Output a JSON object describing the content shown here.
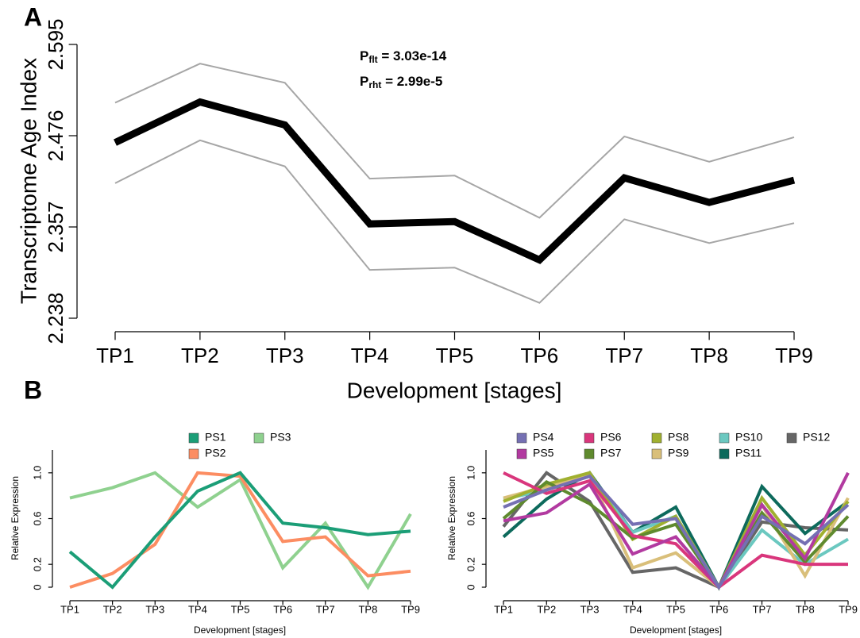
{
  "chart_data": [
    {
      "type": "line",
      "label": "A",
      "ylabel": "Transcriptome Age Index",
      "xlabel": "Development [stages]",
      "categories": [
        "TP1",
        "TP2",
        "TP3",
        "TP4",
        "TP5",
        "TP6",
        "TP7",
        "TP8",
        "TP9"
      ],
      "ylim": [
        2.238,
        2.595
      ],
      "yticks": [
        2.238,
        2.357,
        2.476,
        2.595
      ],
      "annotations": [
        {
          "text": "P",
          "sub": "flt",
          "rest": " = 3.03e-14"
        },
        {
          "text": "P",
          "sub": "rht",
          "rest": " = 2.99e-5"
        }
      ],
      "series": [
        {
          "color": "#000000",
          "values": [
            2.467,
            2.52,
            2.49,
            2.361,
            2.364,
            2.314,
            2.421,
            2.389,
            2.418
          ]
        },
        {
          "color": "#a6a6a6",
          "values": [
            2.519,
            2.57,
            2.545,
            2.42,
            2.424,
            2.369,
            2.475,
            2.442,
            2.474
          ]
        },
        {
          "color": "#a6a6a6",
          "values": [
            2.414,
            2.47,
            2.436,
            2.301,
            2.304,
            2.258,
            2.367,
            2.336,
            2.362
          ]
        }
      ]
    },
    {
      "type": "line",
      "label": "B",
      "ylabel": "Relative Expression",
      "xlabel": "Development [stages]",
      "categories": [
        "TP1",
        "TP2",
        "TP3",
        "TP4",
        "TP5",
        "TP6",
        "TP7",
        "TP8",
        "TP9"
      ],
      "ylim": [
        0,
        1.2
      ],
      "yticks": [
        0,
        0.2,
        0.6,
        {
          "value": 1,
          "label": "1.0"
        }
      ],
      "series": [
        {
          "name": "PS1",
          "color": "#1b9e77",
          "values": [
            0.31,
            0,
            0.44,
            0.84,
            1.0,
            0.56,
            0.52,
            0.46,
            0.49
          ]
        },
        {
          "name": "PS2",
          "color": "#fc8d62",
          "values": [
            0,
            0.12,
            0.375,
            1.0,
            0.97,
            0.4,
            0.44,
            0.1,
            0.14
          ]
        },
        {
          "name": "PS3",
          "color": "#8fd18f",
          "values": [
            0.78,
            0.87,
            1.0,
            0.7,
            0.94,
            0.17,
            0.56,
            0,
            0.64
          ]
        }
      ]
    },
    {
      "type": "line",
      "ylabel": "Relative Expression",
      "xlabel": "Development [stages]",
      "categories": [
        "TP1",
        "TP2",
        "TP3",
        "TP4",
        "TP5",
        "TP6",
        "TP7",
        "TP8",
        "TP9"
      ],
      "ylim": [
        0,
        1.2
      ],
      "yticks": [
        0,
        0.2,
        0.6,
        {
          "value": 1,
          "label": "1.0"
        }
      ],
      "series": [
        {
          "name": "PS4",
          "color": "#7570b3",
          "values": [
            0.7,
            0.85,
            0.97,
            0.55,
            0.6,
            0,
            0.62,
            0.38,
            0.72
          ]
        },
        {
          "name": "PS5",
          "color": "#b23aa0",
          "values": [
            0.58,
            0.65,
            0.9,
            0.29,
            0.44,
            0,
            0.72,
            0.25,
            1.0
          ]
        },
        {
          "name": "PS6",
          "color": "#d9367c",
          "values": [
            1.0,
            0.82,
            0.93,
            0.45,
            0.38,
            0,
            0.28,
            0.2,
            0.2
          ]
        },
        {
          "name": "PS7",
          "color": "#5f8a2e",
          "values": [
            0.6,
            0.92,
            0.73,
            0.43,
            0.55,
            0,
            0.65,
            0.22,
            0.62
          ]
        },
        {
          "name": "PS8",
          "color": "#a0b030",
          "values": [
            0.75,
            0.9,
            1.0,
            0.42,
            0.62,
            0,
            0.78,
            0.28,
            0.75
          ]
        },
        {
          "name": "PS9",
          "color": "#d9bf7a",
          "values": [
            0.78,
            0.88,
            0.98,
            0.17,
            0.3,
            0,
            0.72,
            0.1,
            0.78
          ]
        },
        {
          "name": "PS10",
          "color": "#6bc8c0",
          "values": [
            0.77,
            0.85,
            0.98,
            0.48,
            0.62,
            0,
            0.5,
            0.2,
            0.42
          ]
        },
        {
          "name": "PS11",
          "color": "#0d6a5c",
          "values": [
            0.44,
            0.77,
            1.0,
            0.48,
            0.7,
            0,
            0.88,
            0.47,
            0.75
          ]
        },
        {
          "name": "PS12",
          "color": "#666666",
          "values": [
            0.53,
            1.0,
            0.75,
            0.13,
            0.17,
            0,
            0.57,
            0.52,
            0.5
          ]
        }
      ]
    }
  ]
}
